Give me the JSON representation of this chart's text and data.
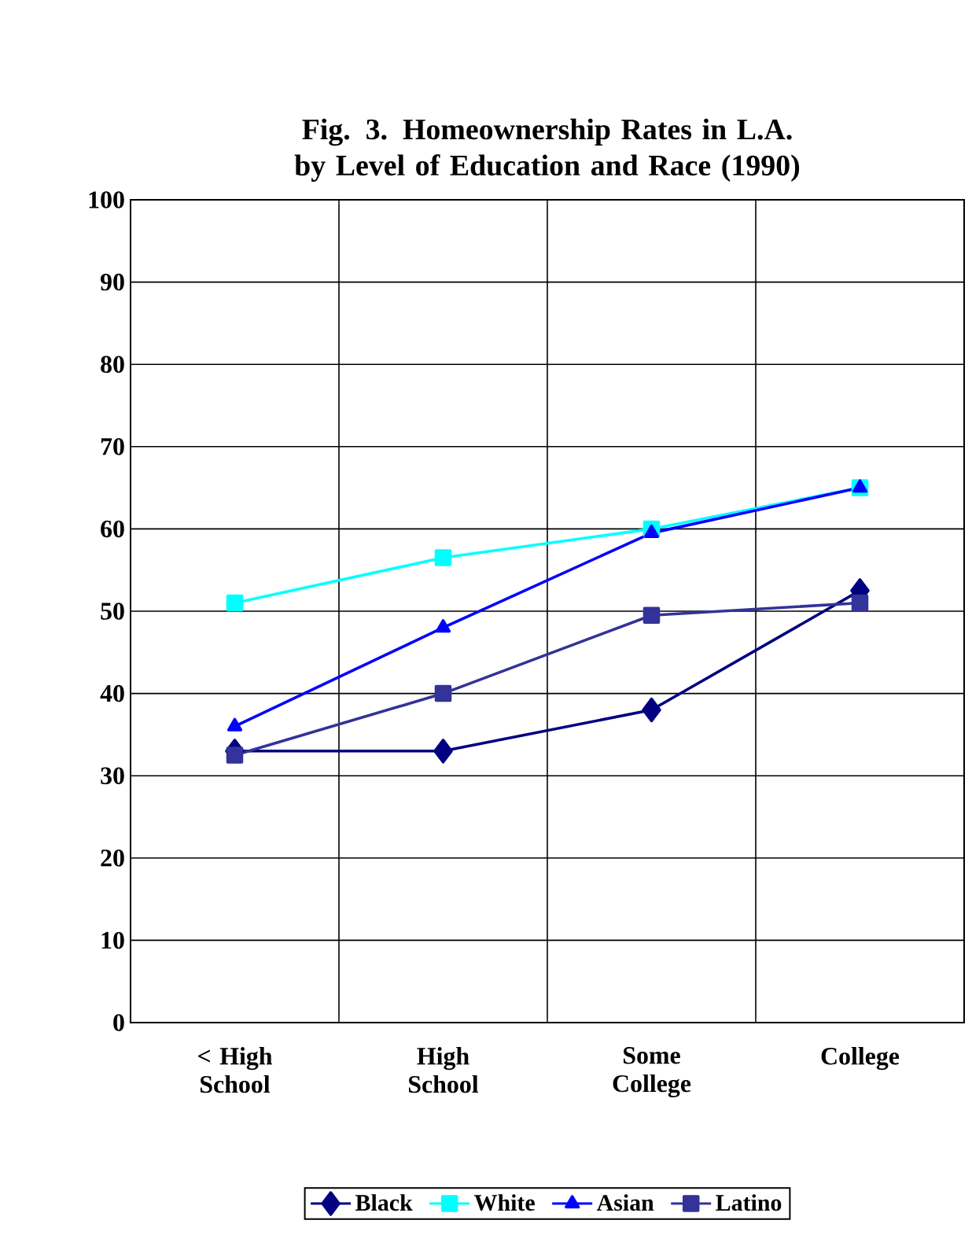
{
  "chart_data": {
    "type": "line",
    "title": "Fig. 3. Homeownership Rates in L.A. by Level of Education and Race (1990)",
    "categories": [
      "< High School",
      "High School",
      "Some College",
      "College"
    ],
    "series": [
      {
        "name": "Black",
        "color": "#000080",
        "marker": "diamond",
        "values": [
          33,
          33,
          38,
          52.5
        ]
      },
      {
        "name": "White",
        "color": "#00ffff",
        "marker": "square",
        "values": [
          51,
          56.5,
          60,
          65
        ]
      },
      {
        "name": "Asian",
        "color": "#0000ff",
        "marker": "triangle",
        "values": [
          36,
          48,
          59.5,
          65
        ]
      },
      {
        "name": "Latino",
        "color": "#333399",
        "marker": "square",
        "values": [
          32.5,
          40,
          49.5,
          51
        ]
      }
    ],
    "ylim": [
      0,
      100
    ],
    "yticks": [
      0,
      10,
      20,
      30,
      40,
      50,
      60,
      70,
      80,
      90,
      100
    ],
    "grid": true,
    "legend": "bottom"
  }
}
